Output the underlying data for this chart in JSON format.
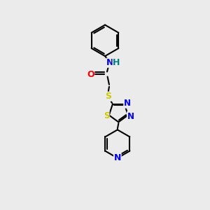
{
  "background_color": "#ebebeb",
  "bond_color": "#000000",
  "atom_colors": {
    "N": "#0000ff",
    "O": "#ff0000",
    "S": "#cccc00",
    "H": "#008080",
    "C": "#000000"
  },
  "figsize": [
    3.0,
    3.0
  ],
  "dpi": 100,
  "bond_lw": 1.5,
  "font_size": 9
}
